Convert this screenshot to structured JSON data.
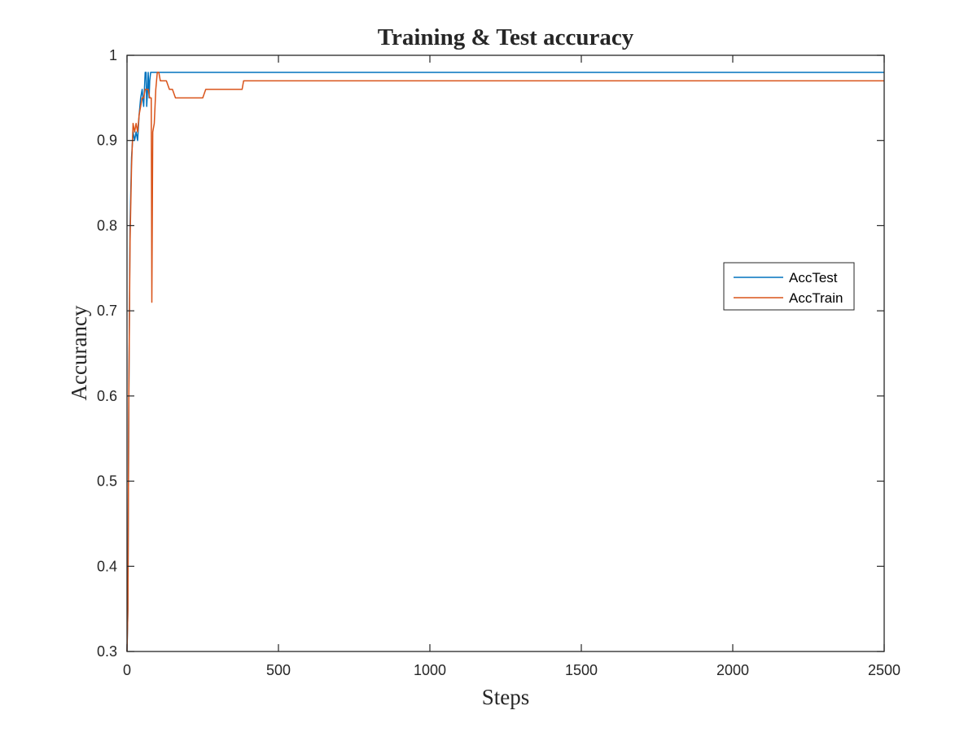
{
  "chart_data": {
    "type": "line",
    "title": "Training & Test accuracy",
    "xlabel": "Steps",
    "ylabel": "Accurancy",
    "xlim": [
      0,
      2500
    ],
    "ylim": [
      0.3,
      1
    ],
    "xticks": [
      0,
      500,
      1000,
      1500,
      2000,
      2500
    ],
    "xtick_labels": [
      "0",
      "500",
      "1000",
      "1500",
      "2000",
      "2500"
    ],
    "yticks": [
      0.3,
      0.4,
      0.5,
      0.6,
      0.7,
      0.8,
      0.9,
      1
    ],
    "ytick_labels": [
      "0.3",
      "0.4",
      "0.5",
      "0.6",
      "0.7",
      "0.8",
      "0.9",
      "1"
    ],
    "grid": false,
    "legend_position": "right",
    "series": [
      {
        "name": "AccTest",
        "color": "#0072BD",
        "x": [
          0,
          3,
          6,
          10,
          15,
          20,
          25,
          30,
          35,
          40,
          45,
          50,
          55,
          60,
          63,
          65,
          68,
          70,
          73,
          75,
          78,
          80,
          85,
          90,
          95,
          100,
          110,
          2500
        ],
        "y": [
          0.3,
          0.35,
          0.6,
          0.8,
          0.88,
          0.91,
          0.9,
          0.91,
          0.9,
          0.93,
          0.95,
          0.96,
          0.94,
          0.98,
          0.98,
          0.94,
          0.96,
          0.98,
          0.95,
          0.97,
          0.98,
          0.98,
          0.98,
          0.98,
          0.98,
          0.98,
          0.98,
          0.98
        ]
      },
      {
        "name": "AccTrain",
        "color": "#D95319",
        "x": [
          0,
          3,
          6,
          10,
          15,
          20,
          25,
          30,
          35,
          40,
          45,
          50,
          55,
          60,
          65,
          70,
          75,
          80,
          82,
          85,
          90,
          95,
          100,
          105,
          110,
          120,
          130,
          140,
          150,
          160,
          170,
          200,
          230,
          250,
          260,
          300,
          350,
          380,
          385,
          400,
          500,
          1000,
          1500,
          2000,
          2500
        ],
        "y": [
          0.3,
          0.35,
          0.6,
          0.78,
          0.87,
          0.92,
          0.91,
          0.92,
          0.91,
          0.93,
          0.94,
          0.95,
          0.95,
          0.96,
          0.96,
          0.96,
          0.95,
          0.95,
          0.71,
          0.91,
          0.92,
          0.96,
          0.98,
          0.98,
          0.97,
          0.97,
          0.97,
          0.96,
          0.96,
          0.95,
          0.95,
          0.95,
          0.95,
          0.95,
          0.96,
          0.96,
          0.96,
          0.96,
          0.97,
          0.97,
          0.97,
          0.97,
          0.97,
          0.97,
          0.97
        ]
      }
    ]
  }
}
